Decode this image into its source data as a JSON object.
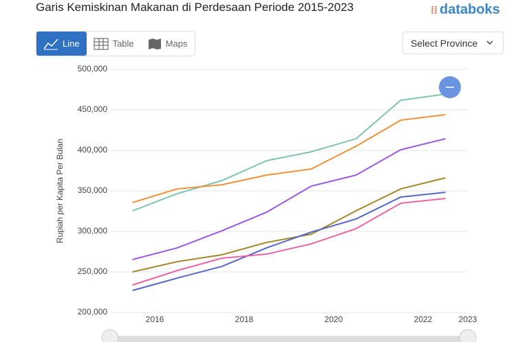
{
  "ui": {
    "logo": "databoks",
    "tabs": [
      "Line",
      "Table",
      "Maps"
    ],
    "select": "Select Province"
  },
  "chart_data": {
    "type": "line",
    "title": "Garis Kemiskinan Makanan di Perdesaan Periode 2015-2023",
    "y_label": "Rupiah per Kapita Per Bulan",
    "x": [
      2015.5,
      2016.5,
      2017.5,
      2018.5,
      2019.5,
      2020.5,
      2021.5,
      2022.5
    ],
    "xlim": [
      2015,
      2023
    ],
    "xticks": [
      2016,
      2018,
      2020,
      2022,
      2023
    ],
    "ylim": [
      200000,
      500000
    ],
    "yticks": [
      {
        "value": 200000,
        "label": "200,000"
      },
      {
        "value": 250000,
        "label": "250,000"
      },
      {
        "value": 300000,
        "label": "300,000"
      },
      {
        "value": 350000,
        "label": "350,000"
      },
      {
        "value": 400000,
        "label": "400,000"
      },
      {
        "value": 450000,
        "label": "450,000"
      },
      {
        "value": 500000,
        "label": "500,000"
      }
    ],
    "grid": true,
    "series": [
      {
        "color": "#7ec4b0",
        "values": [
          325400,
          346600,
          362700,
          387300,
          398300,
          414400,
          461900,
          469500
        ]
      },
      {
        "color": "#f0913a",
        "values": [
          335600,
          352500,
          357600,
          369500,
          377100,
          405100,
          437300,
          444100
        ]
      },
      {
        "color": "#9b55e0",
        "values": [
          265300,
          279700,
          300800,
          323700,
          355900,
          369500,
          400800,
          414400
        ]
      },
      {
        "color": "#a6862a",
        "values": [
          250000,
          262700,
          271200,
          286400,
          296600,
          325400,
          352500,
          366100
        ]
      },
      {
        "color": "#5566c9",
        "values": [
          227100,
          242400,
          256800,
          279700,
          299200,
          315300,
          342400,
          348300
        ]
      },
      {
        "color": "#ec5fa0",
        "values": [
          233900,
          251700,
          267000,
          272000,
          284700,
          303400,
          334800,
          340700
        ]
      }
    ]
  }
}
